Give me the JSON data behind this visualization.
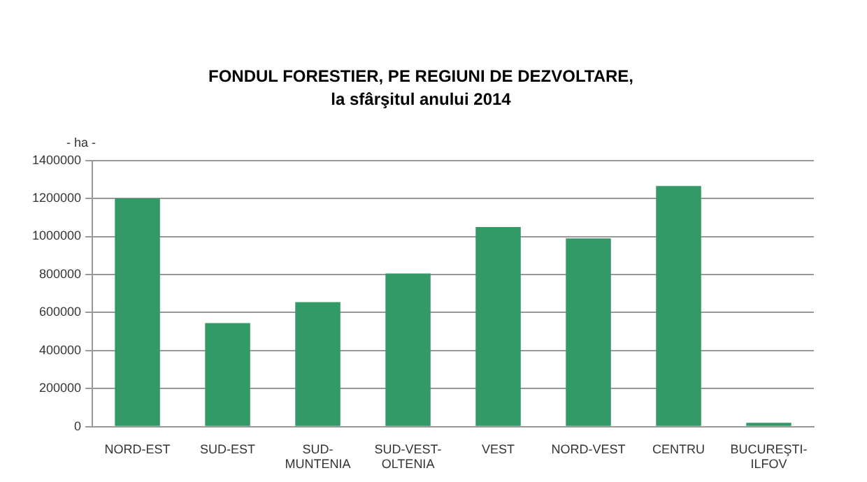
{
  "chart_data": {
    "type": "bar",
    "title": "FONDUL FORESTIER, PE REGIUNI DE DEZVOLTARE,",
    "subtitle": "la sfârşitul anului 2014",
    "ylabel": "- ha -",
    "categories": [
      "NORD-EST",
      "SUD-EST",
      "SUD-\nMUNTENIA",
      "SUD-VEST-\nOLTENIA",
      "VEST",
      "NORD-VEST",
      "CENTRU",
      "BUCUREŞTI-\nILFOV"
    ],
    "values": [
      1200000,
      545000,
      655000,
      805000,
      1050000,
      990000,
      1265000,
      20000
    ],
    "color": "#339966",
    "ylim": [
      0,
      1400000
    ],
    "yticks": [
      0,
      200000,
      400000,
      600000,
      800000,
      1000000,
      1200000,
      1400000
    ],
    "grid": "y"
  }
}
